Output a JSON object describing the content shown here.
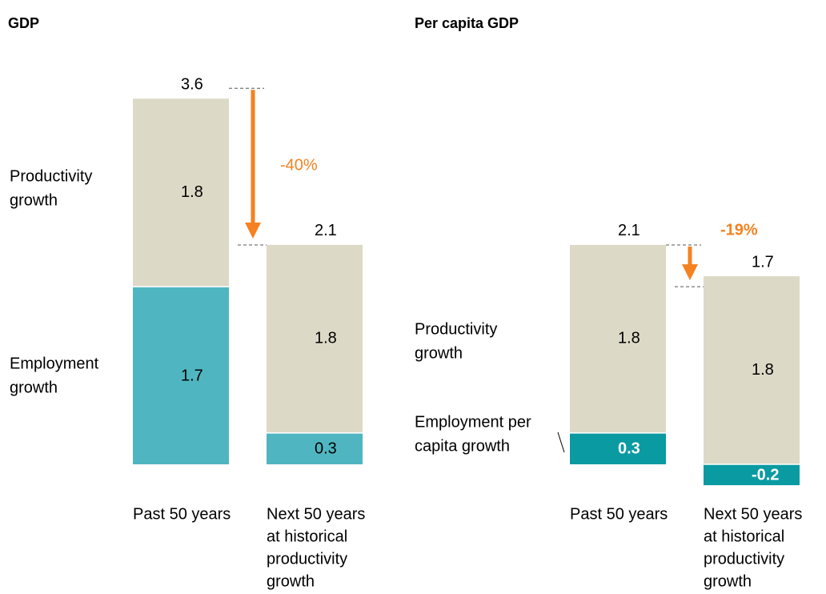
{
  "colors": {
    "productivity": "#dcd9c6",
    "employment_gdp": "#4fb6c1",
    "employment_percapita": "#0a9aa2",
    "arrow": "#f58220",
    "background": "#ffffff",
    "text": "#000000"
  },
  "chart_data": [
    {
      "type": "bar",
      "stacked": true,
      "title": "GDP",
      "categories": [
        "Past 50 years",
        "Next 50 years at historical productivity growth"
      ],
      "category_lines": [
        [
          "Past 50 years"
        ],
        [
          "Next 50 years",
          "at historical",
          "productivity",
          "growth"
        ]
      ],
      "series": [
        {
          "name": "Employment growth",
          "label_lines": [
            "Employment",
            "growth"
          ],
          "values": [
            1.7,
            0.3
          ]
        },
        {
          "name": "Productivity growth",
          "label_lines": [
            "Productivity",
            "growth"
          ],
          "values": [
            1.8,
            1.8
          ]
        }
      ],
      "value_labels": [
        [
          "1.7",
          "0.3"
        ],
        [
          "1.8",
          "1.8"
        ]
      ],
      "totals": [
        3.6,
        2.1
      ],
      "total_labels": [
        "3.6",
        "2.1"
      ],
      "change_label": "-40%",
      "change_bold": false,
      "ylim": [
        0,
        3.6
      ]
    },
    {
      "type": "bar",
      "stacked": true,
      "title": "Per capita GDP",
      "categories": [
        "Past 50 years",
        "Next 50 years at historical productivity growth"
      ],
      "category_lines": [
        [
          "Past 50 years"
        ],
        [
          "Next 50 years",
          "at historical",
          "productivity",
          "growth"
        ]
      ],
      "series": [
        {
          "name": "Employment per capita growth",
          "label_lines": [
            "Employment per",
            "capita growth"
          ],
          "values": [
            0.3,
            -0.2
          ]
        },
        {
          "name": "Productivity growth",
          "label_lines": [
            "Productivity",
            "growth"
          ],
          "values": [
            1.8,
            1.8
          ]
        }
      ],
      "value_labels": [
        [
          "0.3",
          "-0.2"
        ],
        [
          "1.8",
          "1.8"
        ]
      ],
      "totals": [
        2.1,
        1.7
      ],
      "total_labels": [
        "2.1",
        "1.7"
      ],
      "change_label": "-19%",
      "change_bold": true,
      "ylim": [
        -0.2,
        3.6
      ]
    }
  ]
}
